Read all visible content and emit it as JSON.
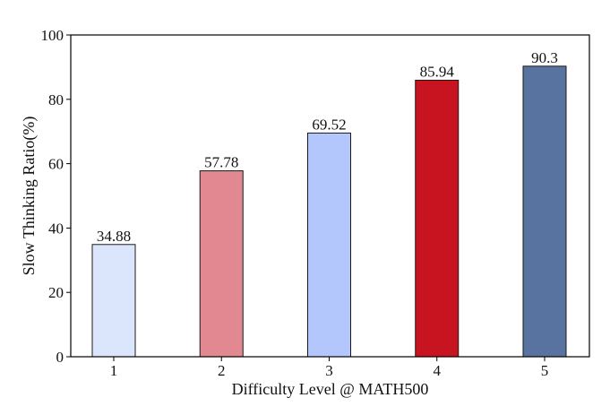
{
  "chart_data": {
    "type": "bar",
    "categories": [
      "1",
      "2",
      "3",
      "4",
      "5"
    ],
    "values": [
      34.88,
      57.78,
      69.52,
      85.94,
      90.3
    ],
    "value_labels": [
      "34.88",
      "57.78",
      "69.52",
      "85.94",
      "90.3"
    ],
    "colors": [
      "#dbe6fd",
      "#e28891",
      "#b3c7fd",
      "#c81321",
      "#5873a0"
    ],
    "title": "",
    "xlabel": "Difficulty Level @ MATH500",
    "ylabel": "Slow Thinking Ratio(%)",
    "ylim": [
      0,
      100
    ],
    "yticks": [
      0,
      20,
      40,
      60,
      80,
      100
    ],
    "ytick_labels": [
      "0",
      "20",
      "40",
      "60",
      "80",
      "100"
    ],
    "grid": false,
    "legend": "none"
  }
}
